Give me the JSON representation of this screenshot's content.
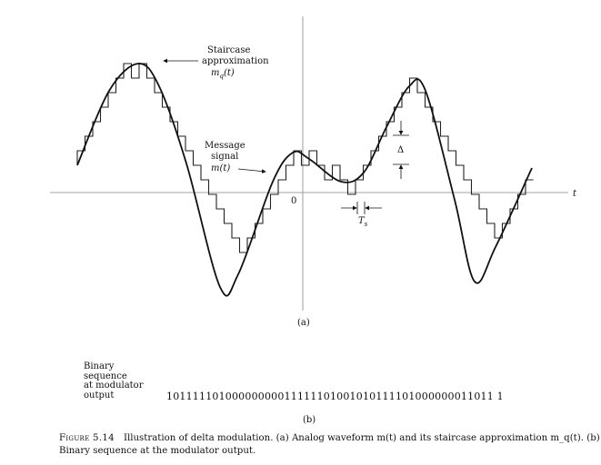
{
  "labels": {
    "staircase_line1": "Staircase",
    "staircase_line2": "approximation",
    "staircase_symbol": "m",
    "staircase_symbol_sub": "q",
    "staircase_symbol_arg": "(t)",
    "message_line1": "Message",
    "message_line2": "signal",
    "message_symbol": "m(t)",
    "origin": "0",
    "t_axis": "t",
    "delta": "Δ",
    "ts_symbol": "T",
    "ts_sub": "s",
    "panel_a": "(a)",
    "panel_b": "(b)"
  },
  "sequence": {
    "label_line1": "Binary",
    "label_line2": "sequence",
    "label_line3": "at modulator",
    "label_line4": "output",
    "bits": "10111110100000000011111101001010111101000000011011 1"
  },
  "caption": {
    "figure_number": "Figure 5.14",
    "text": "Illustration of delta modulation. (a) Analog waveform m(t) and its staircase approximation m_q(t). (b) Binary sequence at the modulator output."
  }
}
